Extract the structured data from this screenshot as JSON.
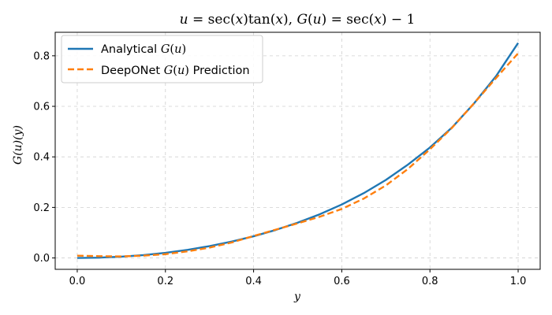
{
  "chart_data": {
    "type": "line",
    "title": "u = sec(x)tan(x), G(u) = sec(x) − 1",
    "xlabel": "y",
    "ylabel": "G(u)(y)",
    "xlim": [
      -0.05,
      1.05
    ],
    "ylim": [
      -0.045,
      0.893
    ],
    "xticks": [
      0.0,
      0.2,
      0.4,
      0.6,
      0.8,
      1.0
    ],
    "yticks": [
      0.0,
      0.2,
      0.4,
      0.6,
      0.8
    ],
    "xtick_labels": [
      "0.0",
      "0.2",
      "0.4",
      "0.6",
      "0.8",
      "1.0"
    ],
    "ytick_labels": [
      "0.0",
      "0.2",
      "0.4",
      "0.6",
      "0.8"
    ],
    "grid": true,
    "legend_position": "upper-left",
    "x": [
      0.0,
      0.05,
      0.1,
      0.15,
      0.2,
      0.25,
      0.3,
      0.35,
      0.4,
      0.45,
      0.5,
      0.55,
      0.6,
      0.65,
      0.7,
      0.75,
      0.8,
      0.85,
      0.9,
      0.95,
      1.0
    ],
    "series": [
      {
        "name": "Analytical G(u)",
        "color": "#1f77b4",
        "style": "solid",
        "values": [
          0.0,
          0.0013,
          0.005,
          0.0114,
          0.0203,
          0.032,
          0.0468,
          0.0646,
          0.0857,
          0.1107,
          0.1395,
          0.1729,
          0.2116,
          0.2566,
          0.3087,
          0.3693,
          0.4372,
          0.5162,
          0.6116,
          0.7197,
          0.8508
        ]
      },
      {
        "name": "DeepONet G(u) Prediction",
        "color": "#ff7f0e",
        "style": "dashed",
        "values": [
          0.009,
          0.007,
          0.006,
          0.009,
          0.015,
          0.026,
          0.041,
          0.061,
          0.087,
          0.112,
          0.137,
          0.163,
          0.194,
          0.235,
          0.287,
          0.352,
          0.43,
          0.515,
          0.612,
          0.712,
          0.81
        ]
      }
    ]
  }
}
